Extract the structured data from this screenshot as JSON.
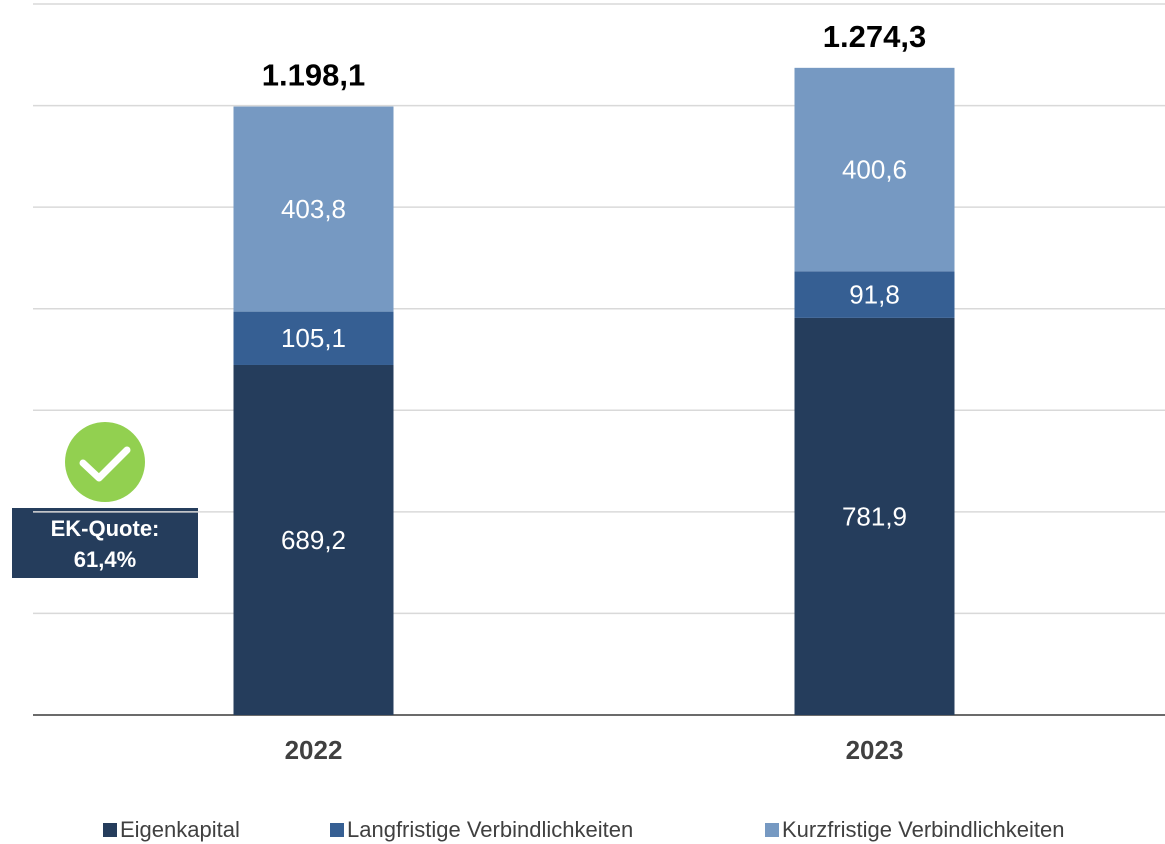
{
  "chart_data": {
    "type": "stacked_bar",
    "categories": [
      "2022",
      "2023"
    ],
    "series": [
      {
        "name": "Eigenkapital",
        "color": "#253d5c",
        "values": [
          689.2,
          781.9
        ],
        "value_labels": [
          "689,2",
          "781,9"
        ]
      },
      {
        "name": "Langfristige Verbindlichkeiten",
        "color": "#365f93",
        "values": [
          105.1,
          91.8
        ],
        "value_labels": [
          "105,1",
          "91,8"
        ]
      },
      {
        "name": "Kurzfristige Verbindlichkeiten",
        "color": "#7699c2",
        "values": [
          403.8,
          400.6
        ],
        "value_labels": [
          "403,8",
          "400,6"
        ]
      }
    ],
    "totals": [
      1198.1,
      1274.3
    ],
    "total_labels": [
      "1.198,1",
      "1.274,3"
    ],
    "ylim": [
      0,
      1400
    ],
    "yticks": [
      0,
      200,
      400,
      600,
      800,
      1000,
      1200,
      1400
    ],
    "grid": true,
    "legend": "bottom",
    "annotation": [
      "EK-Quote:",
      "61,4%"
    ]
  }
}
